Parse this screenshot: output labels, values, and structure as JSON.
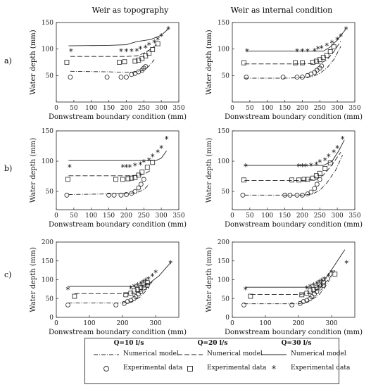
{
  "figure": {
    "column_titles": [
      "Weir as topography",
      "Weir as internal condition"
    ],
    "row_labels": [
      "a)",
      "b)",
      "c)"
    ],
    "xlabel": "Donwstream boundary condition (mm)",
    "ylabel": "Water depth (mm)"
  },
  "legend": {
    "groups": [
      {
        "title": "Q=10 l/s",
        "model_label": "Numerical model",
        "exp_label": "Experimental data",
        "line": "dashdot",
        "marker": "circle"
      },
      {
        "title": "Q=20 l/s",
        "model_label": "Numerical model",
        "exp_label": "Experimental data",
        "line": "dashed",
        "marker": "square"
      },
      {
        "title": "Q=30 l/s",
        "model_label": "Numerical model",
        "exp_label": "Experimental data",
        "line": "solid",
        "marker": "star"
      }
    ]
  },
  "chart_data": [
    {
      "type": "line",
      "row": "a)",
      "title": "Weir as topography",
      "xlim": [
        0,
        350
      ],
      "ylim": [
        0,
        150
      ],
      "xticks": [
        0,
        50,
        100,
        150,
        200,
        250,
        300,
        350
      ],
      "yticks": [
        50,
        100,
        150
      ],
      "series": [
        {
          "name": "Q=10 l/s",
          "kind": "model",
          "line": "dashdot",
          "x": [
            40,
            150,
            200,
            230,
            250,
            265,
            280
          ],
          "y": [
            58,
            57,
            56,
            57,
            60,
            68,
            80
          ]
        },
        {
          "name": "Q=20 l/s",
          "kind": "model",
          "line": "dashed",
          "x": [
            40,
            150,
            200,
            230,
            250,
            270,
            290
          ],
          "y": [
            86,
            86,
            86,
            87,
            92,
            100,
            110
          ]
        },
        {
          "name": "Q=30 l/s",
          "kind": "model",
          "line": "solid",
          "x": [
            35,
            150,
            200,
            230,
            250,
            270,
            300,
            320
          ],
          "y": [
            106,
            107,
            108,
            114,
            116,
            118,
            126,
            138
          ]
        },
        {
          "name": "Q=10 l/s",
          "kind": "experimental",
          "marker": "circle",
          "x": [
            40,
            145,
            185,
            200,
            215,
            225,
            235,
            245,
            250,
            255
          ],
          "y": [
            47,
            47,
            47,
            47,
            52,
            54,
            57,
            60,
            64,
            67
          ]
        },
        {
          "name": "Q=20 l/s",
          "kind": "experimental",
          "marker": "square",
          "x": [
            30,
            180,
            195,
            225,
            235,
            245,
            255,
            265,
            275,
            290
          ],
          "y": [
            75,
            75,
            76,
            77,
            79,
            82,
            87,
            92,
            99,
            110
          ]
        },
        {
          "name": "Q=30 l/s",
          "kind": "experimental",
          "marker": "star",
          "x": [
            42,
            185,
            200,
            215,
            230,
            240,
            255,
            265,
            280,
            290,
            300,
            320
          ],
          "y": [
            96,
            96,
            96,
            96,
            97,
            101,
            103,
            108,
            113,
            118,
            125,
            138
          ]
        }
      ]
    },
    {
      "type": "line",
      "row": "a)",
      "title": "Weir as internal condition",
      "xlim": [
        0,
        350
      ],
      "ylim": [
        0,
        150
      ],
      "xticks": [
        0,
        50,
        100,
        150,
        200,
        250,
        300,
        350
      ],
      "yticks": [
        50,
        100,
        150
      ],
      "series": [
        {
          "name": "Q=10 l/s",
          "kind": "model",
          "line": "dashdot",
          "x": [
            35,
            150,
            200,
            230,
            250,
            270,
            290,
            310
          ],
          "y": [
            45,
            45,
            46,
            48,
            54,
            64,
            80,
            105
          ]
        },
        {
          "name": "Q=20 l/s",
          "kind": "model",
          "line": "dashed",
          "x": [
            35,
            150,
            200,
            250,
            270,
            290,
            310
          ],
          "y": [
            72,
            72,
            72,
            73,
            79,
            95,
            115
          ]
        },
        {
          "name": "Q=30 l/s",
          "kind": "model",
          "line": "solid",
          "x": [
            40,
            150,
            200,
            260,
            280,
            300,
            325
          ],
          "y": [
            96,
            96,
            96,
            96,
            104,
            117,
            138
          ]
        },
        {
          "name": "Q=10 l/s",
          "kind": "experimental",
          "marker": "circle",
          "x": [
            40,
            145,
            185,
            200,
            215,
            225,
            235,
            242,
            250,
            255
          ],
          "y": [
            47,
            47,
            47,
            47,
            50,
            53,
            56,
            60,
            64,
            68
          ]
        },
        {
          "name": "Q=20 l/s",
          "kind": "experimental",
          "marker": "square",
          "x": [
            33,
            180,
            200,
            230,
            240,
            250,
            260,
            270,
            280,
            290
          ],
          "y": [
            74,
            74,
            74,
            75,
            77,
            80,
            84,
            88,
            95,
            104
          ]
        },
        {
          "name": "Q=30 l/s",
          "kind": "experimental",
          "marker": "star",
          "x": [
            42,
            185,
            200,
            215,
            235,
            245,
            255,
            270,
            285,
            300,
            310,
            325
          ],
          "y": [
            96,
            96,
            96,
            96,
            97,
            101,
            102,
            107,
            112,
            118,
            125,
            138
          ]
        }
      ]
    },
    {
      "type": "line",
      "row": "b)",
      "title": "Weir as topography",
      "xlim": [
        0,
        350
      ],
      "ylim": [
        20,
        150
      ],
      "xticks": [
        0,
        50,
        100,
        150,
        200,
        250,
        300,
        350
      ],
      "yticks": [
        50,
        100,
        150
      ],
      "series": [
        {
          "name": "Q=10 l/s",
          "kind": "model",
          "line": "dashdot",
          "x": [
            35,
            150,
            200,
            230,
            250,
            265
          ],
          "y": [
            45,
            46,
            47,
            48,
            53,
            62
          ]
        },
        {
          "name": "Q=20 l/s",
          "kind": "model",
          "line": "dashed",
          "x": [
            35,
            150,
            200,
            240,
            255,
            270
          ],
          "y": [
            76,
            76,
            76,
            77,
            80,
            85
          ]
        },
        {
          "name": "Q=30 l/s",
          "kind": "model",
          "line": "solid",
          "x": [
            35,
            150,
            200,
            260,
            285,
            300,
            315
          ],
          "y": [
            101,
            101,
            101,
            101,
            101,
            105,
            117
          ]
        },
        {
          "name": "Q=10 l/s",
          "kind": "experimental",
          "marker": "circle",
          "x": [
            30,
            150,
            165,
            185,
            200,
            215,
            225,
            235,
            242,
            250
          ],
          "y": [
            44,
            44,
            44,
            44,
            45,
            47,
            50,
            56,
            62,
            70
          ]
        },
        {
          "name": "Q=20 l/s",
          "kind": "experimental",
          "marker": "square",
          "x": [
            33,
            170,
            190,
            205,
            215,
            225,
            235,
            245,
            260,
            275
          ],
          "y": [
            70,
            70,
            70,
            71,
            72,
            73,
            77,
            82,
            90,
            98
          ]
        },
        {
          "name": "Q=30 l/s",
          "kind": "experimental",
          "marker": "star",
          "x": [
            38,
            190,
            200,
            210,
            225,
            240,
            250,
            265,
            275,
            290,
            300,
            315
          ],
          "y": [
            91,
            91,
            91,
            91,
            93,
            95,
            99,
            102,
            108,
            115,
            122,
            137
          ]
        }
      ]
    },
    {
      "type": "line",
      "row": "b)",
      "title": "Weir as internal condition",
      "xlim": [
        0,
        350
      ],
      "ylim": [
        20,
        150
      ],
      "xticks": [
        0,
        50,
        100,
        150,
        200,
        250,
        300,
        350
      ],
      "yticks": [
        50,
        100,
        150
      ],
      "series": [
        {
          "name": "Q=10 l/s",
          "kind": "model",
          "line": "dashdot",
          "x": [
            35,
            150,
            200,
            230,
            250,
            270,
            295,
            315
          ],
          "y": [
            44,
            44,
            44,
            46,
            52,
            64,
            85,
            110
          ]
        },
        {
          "name": "Q=20 l/s",
          "kind": "model",
          "line": "dashed",
          "x": [
            35,
            150,
            200,
            240,
            260,
            285,
            310
          ],
          "y": [
            68,
            68,
            68,
            70,
            77,
            94,
            115
          ]
        },
        {
          "name": "Q=30 l/s",
          "kind": "model",
          "line": "solid",
          "x": [
            35,
            150,
            200,
            260,
            285,
            305,
            320
          ],
          "y": [
            93,
            93,
            93,
            93,
            100,
            118,
            135
          ]
        },
        {
          "name": "Q=10 l/s",
          "kind": "experimental",
          "marker": "circle",
          "x": [
            30,
            150,
            165,
            185,
            200,
            215,
            225,
            235,
            242,
            250
          ],
          "y": [
            44,
            44,
            44,
            44,
            44,
            46,
            49,
            55,
            62,
            70
          ]
        },
        {
          "name": "Q=20 l/s",
          "kind": "experimental",
          "marker": "square",
          "x": [
            33,
            170,
            190,
            205,
            215,
            230,
            240,
            250,
            265,
            280
          ],
          "y": [
            69,
            69,
            69,
            70,
            70,
            72,
            76,
            80,
            88,
            97
          ]
        },
        {
          "name": "Q=30 l/s",
          "kind": "experimental",
          "marker": "star",
          "x": [
            38,
            190,
            200,
            210,
            225,
            240,
            250,
            265,
            275,
            290,
            300,
            315
          ],
          "y": [
            92,
            92,
            92,
            92,
            93,
            95,
            99,
            102,
            108,
            115,
            122,
            137
          ]
        }
      ]
    },
    {
      "type": "line",
      "row": "c)",
      "title": "Weir as topography",
      "xlim": [
        0,
        370
      ],
      "ylim": [
        0,
        200
      ],
      "xticks": [
        0,
        100,
        200,
        300
      ],
      "yticks": [
        0,
        50,
        100,
        150,
        200
      ],
      "series": [
        {
          "name": "Q=10 l/s",
          "kind": "model",
          "line": "dashdot",
          "x": [
            35,
            150,
            200,
            230,
            255,
            280
          ],
          "y": [
            38,
            38,
            38,
            42,
            55,
            80
          ]
        },
        {
          "name": "Q=20 l/s",
          "kind": "model",
          "line": "dashed",
          "x": [
            55,
            150,
            200,
            240,
            270,
            290
          ],
          "y": [
            63,
            63,
            63,
            64,
            75,
            95
          ]
        },
        {
          "name": "Q=30 l/s",
          "kind": "model",
          "line": "solid",
          "x": [
            35,
            150,
            200,
            250,
            280,
            310,
            345
          ],
          "y": [
            82,
            82,
            82,
            82,
            90,
            110,
            145
          ]
        },
        {
          "name": "Q=10 l/s",
          "kind": "experimental",
          "marker": "circle",
          "x": [
            35,
            180,
            205,
            215,
            225,
            235,
            240,
            248,
            255,
            265,
            275
          ],
          "y": [
            33,
            33,
            37,
            42,
            45,
            50,
            55,
            62,
            68,
            78,
            85
          ]
        },
        {
          "name": "Q=20 l/s",
          "kind": "experimental",
          "marker": "square",
          "x": [
            55,
            210,
            225,
            235,
            245,
            255,
            265,
            275
          ],
          "y": [
            56,
            60,
            64,
            70,
            74,
            80,
            86,
            92
          ]
        },
        {
          "name": "Q=30 l/s",
          "kind": "experimental",
          "marker": "star",
          "x": [
            35,
            225,
            235,
            245,
            255,
            262,
            270,
            278,
            290,
            300,
            345
          ],
          "y": [
            75,
            78,
            82,
            86,
            90,
            94,
            98,
            102,
            110,
            120,
            145
          ]
        }
      ]
    },
    {
      "type": "line",
      "row": "c)",
      "title": "Weir as internal condition",
      "xlim": [
        0,
        370
      ],
      "ylim": [
        0,
        200
      ],
      "xticks": [
        0,
        100,
        200,
        300
      ],
      "yticks": [
        0,
        50,
        100,
        150,
        200
      ],
      "series": [
        {
          "name": "Q=10 l/s",
          "kind": "model",
          "line": "dashdot",
          "x": [
            35,
            150,
            200,
            230,
            260,
            280,
            300
          ],
          "y": [
            36,
            36,
            36,
            42,
            58,
            80,
            110
          ]
        },
        {
          "name": "Q=20 l/s",
          "kind": "model",
          "line": "dashed",
          "x": [
            55,
            150,
            200,
            240,
            265,
            290,
            310
          ],
          "y": [
            61,
            61,
            61,
            64,
            78,
            100,
            125
          ]
        },
        {
          "name": "Q=30 l/s",
          "kind": "model",
          "line": "solid",
          "x": [
            40,
            150,
            200,
            255,
            280,
            310,
            340
          ],
          "y": [
            80,
            80,
            80,
            80,
            100,
            140,
            180
          ]
        },
        {
          "name": "Q=10 l/s",
          "kind": "experimental",
          "marker": "circle",
          "x": [
            35,
            180,
            205,
            215,
            225,
            235,
            240,
            248,
            255,
            265,
            275
          ],
          "y": [
            33,
            33,
            37,
            42,
            45,
            50,
            55,
            62,
            68,
            78,
            85
          ]
        },
        {
          "name": "Q=20 l/s",
          "kind": "experimental",
          "marker": "square",
          "x": [
            55,
            210,
            225,
            235,
            245,
            255,
            265,
            275,
            310
          ],
          "y": [
            56,
            60,
            64,
            70,
            74,
            80,
            86,
            92,
            115
          ]
        },
        {
          "name": "Q=30 l/s",
          "kind": "experimental",
          "marker": "star",
          "x": [
            40,
            225,
            235,
            245,
            255,
            262,
            270,
            278,
            290,
            300,
            345
          ],
          "y": [
            75,
            78,
            82,
            86,
            90,
            94,
            98,
            102,
            110,
            120,
            145
          ]
        }
      ]
    }
  ]
}
